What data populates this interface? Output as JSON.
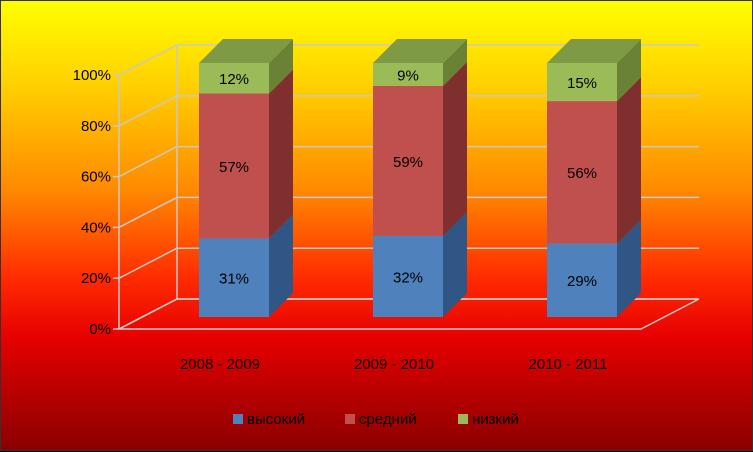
{
  "chart_data": {
    "type": "bar",
    "stacked": true,
    "percent": true,
    "three_d": true,
    "categories": [
      "2008 - 2009",
      "2009 - 2010",
      "2010 - 2011"
    ],
    "series": [
      {
        "name": "высокий",
        "values": [
          31,
          32,
          29
        ],
        "labels": [
          "31%",
          "32%",
          "29%"
        ],
        "color": "#4f81bd",
        "side": "#2f5684",
        "top": "#7ba3d6"
      },
      {
        "name": "средний",
        "values": [
          57,
          59,
          56
        ],
        "labels": [
          "57%",
          "59%",
          "56%"
        ],
        "color": "#c0504d",
        "side": "#7f2f2d",
        "top": "#d8807d"
      },
      {
        "name": "низкий",
        "values": [
          12,
          9,
          15
        ],
        "labels": [
          "12%",
          "9%",
          "15%"
        ],
        "color": "#9bbb59",
        "side": "#6a8236",
        "top": "#7f9a44"
      }
    ],
    "yticks": [
      "0%",
      "20%",
      "40%",
      "60%",
      "80%",
      "100%"
    ],
    "ylim": [
      0,
      100
    ],
    "grid": true,
    "legend": "bottom"
  }
}
